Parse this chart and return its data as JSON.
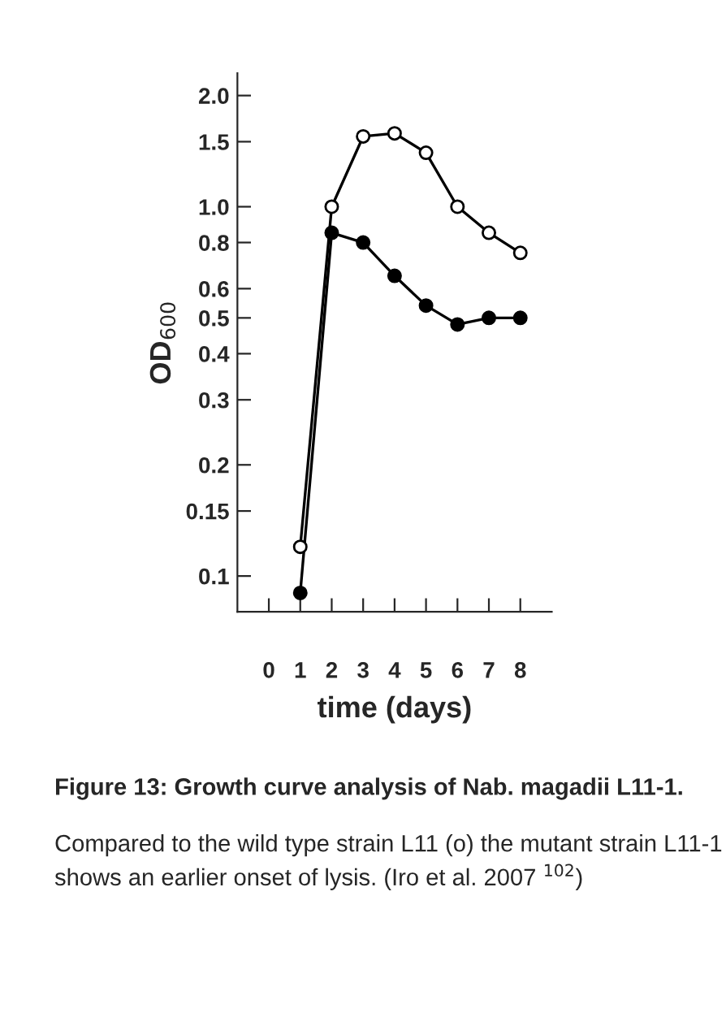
{
  "chart_data": {
    "type": "line",
    "xlabel": "time (days)",
    "ylabel": "OD$_{600}$",
    "x": [
      1,
      2,
      3,
      4,
      5,
      6,
      7,
      8
    ],
    "series": [
      {
        "color": "#000000",
        "values": [
          0.12,
          1.0,
          1.55,
          1.58,
          1.4,
          1.0,
          0.85,
          0.75
        ]
      },
      {
        "color": "#000000",
        "values": [
          0.09,
          0.85,
          0.8,
          0.65,
          0.54,
          0.48,
          0.5,
          0.5
        ]
      }
    ],
    "log": "y",
    "marker": "circle",
    "line_style": "solid",
    "grid": false,
    "legend": false,
    "xlim": [
      -1,
      9
    ],
    "xticks": [
      0,
      1,
      2,
      3,
      4,
      5,
      6,
      7,
      8
    ],
    "ylim": [
      0.08,
      2.3
    ],
    "yticks": [
      0.1,
      0.15,
      0.2,
      0.3,
      0.4,
      0.5,
      0.6,
      0.8,
      {
        "value": 1,
        "label": "1.0"
      },
      1.5,
      {
        "value": 2,
        "label": "2.0"
      }
    ],
    "annotations": [
      "Figure 13: Growth curve analysis of Nab. magadii L11-1.",
      "Compared to the wild type strain L11 (o) the mutant strain L11-1 shows an earlier onset of lysis. (Iro et al. 2007 $^{102}$)"
    ]
  }
}
